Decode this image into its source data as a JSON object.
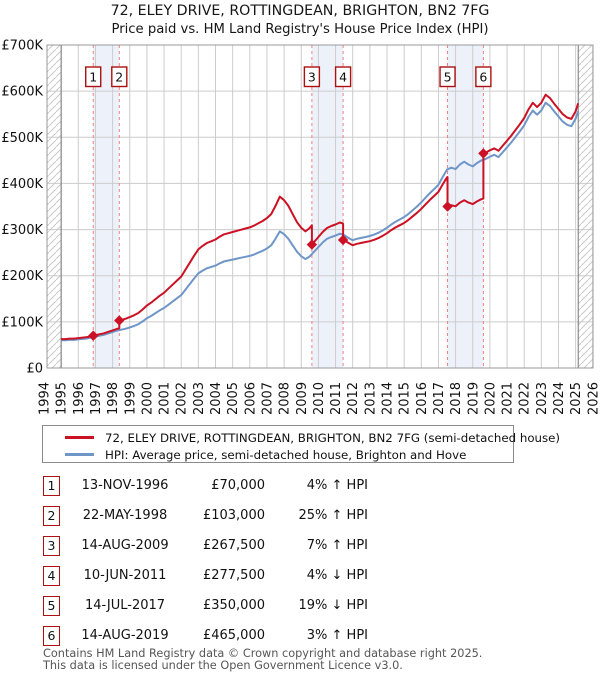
{
  "title": "72, ELEY DRIVE, ROTTINGDEAN, BRIGHTON, BN2 7FG",
  "subtitle": "Price paid vs. HM Land Registry's House Price Index (HPI)",
  "legend": {
    "property": "72, ELEY DRIVE, ROTTINGDEAN, BRIGHTON, BN2 7FG (semi-detached house)",
    "hpi": "HPI: Average price, semi-detached house, Brighton and Hove"
  },
  "colors": {
    "property_line": "#cc1124",
    "hpi_line": "#6f96c8",
    "sale_marker": "#cc1124",
    "sale_dashed_line": "#ef8080",
    "sale_band": "#edf2fa",
    "grid": "#cccccc",
    "plot_border": "#999999",
    "hatch": "#c9c9c9",
    "data_edge": "#777777",
    "number_box_border": "#aa1111"
  },
  "chart_data": {
    "type": "line",
    "title": "72, ELEY DRIVE, ROTTINGDEAN, BRIGHTON, BN2 7FG",
    "subtitle": "Price paid vs. HM Land Registry's House Price Index (HPI)",
    "x_axis": {
      "start": 1994,
      "end": 2026,
      "tick_step": 1,
      "label_rotation_deg": -90
    },
    "y_axis": {
      "min": 0,
      "max": 700000,
      "tick_step": 100000,
      "tick_labels": [
        "£0",
        "£100K",
        "£200K",
        "£300K",
        "£400K",
        "£500K",
        "£600K",
        "£700K"
      ],
      "units": "GBP"
    },
    "grid": true,
    "legend_position": "below",
    "no_data_hatch_before": 1995.0,
    "no_data_hatch_after": 2025.15,
    "hpi_series": {
      "name": "HPI: Average price, semi-detached house, Brighton and Hove",
      "units": "GBP thousands",
      "points": [
        [
          1995.0,
          60
        ],
        [
          1995.25,
          60
        ],
        [
          1995.5,
          61
        ],
        [
          1995.75,
          61
        ],
        [
          1996.0,
          62
        ],
        [
          1996.25,
          63
        ],
        [
          1996.5,
          64
        ],
        [
          1996.75,
          66
        ],
        [
          1997.0,
          68
        ],
        [
          1997.25,
          70
        ],
        [
          1997.5,
          72
        ],
        [
          1997.75,
          75
        ],
        [
          1998.0,
          78
        ],
        [
          1998.25,
          81
        ],
        [
          1998.5,
          83
        ],
        [
          1998.75,
          85
        ],
        [
          1999.0,
          88
        ],
        [
          1999.25,
          91
        ],
        [
          1999.5,
          95
        ],
        [
          1999.75,
          101
        ],
        [
          2000.0,
          108
        ],
        [
          2000.25,
          113
        ],
        [
          2000.5,
          119
        ],
        [
          2000.75,
          125
        ],
        [
          2001.0,
          130
        ],
        [
          2001.25,
          137
        ],
        [
          2001.5,
          144
        ],
        [
          2001.75,
          151
        ],
        [
          2002.0,
          158
        ],
        [
          2002.25,
          170
        ],
        [
          2002.5,
          182
        ],
        [
          2002.75,
          194
        ],
        [
          2003.0,
          205
        ],
        [
          2003.25,
          211
        ],
        [
          2003.5,
          216
        ],
        [
          2003.75,
          219
        ],
        [
          2004.0,
          222
        ],
        [
          2004.25,
          227
        ],
        [
          2004.5,
          231
        ],
        [
          2004.75,
          233
        ],
        [
          2005.0,
          235
        ],
        [
          2005.25,
          237
        ],
        [
          2005.5,
          239
        ],
        [
          2005.75,
          241
        ],
        [
          2006.0,
          243
        ],
        [
          2006.25,
          246
        ],
        [
          2006.5,
          250
        ],
        [
          2006.75,
          254
        ],
        [
          2007.0,
          259
        ],
        [
          2007.25,
          266
        ],
        [
          2007.5,
          280
        ],
        [
          2007.75,
          296
        ],
        [
          2008.0,
          290
        ],
        [
          2008.25,
          280
        ],
        [
          2008.5,
          266
        ],
        [
          2008.75,
          252
        ],
        [
          2009.0,
          242
        ],
        [
          2009.25,
          236
        ],
        [
          2009.5,
          242
        ],
        [
          2009.75,
          252
        ],
        [
          2010.0,
          262
        ],
        [
          2010.25,
          272
        ],
        [
          2010.5,
          280
        ],
        [
          2010.75,
          284
        ],
        [
          2011.0,
          287
        ],
        [
          2011.25,
          291
        ],
        [
          2011.5,
          288
        ],
        [
          2011.75,
          282
        ],
        [
          2012.0,
          277
        ],
        [
          2012.25,
          280
        ],
        [
          2012.5,
          282
        ],
        [
          2012.75,
          284
        ],
        [
          2013.0,
          286
        ],
        [
          2013.25,
          289
        ],
        [
          2013.5,
          293
        ],
        [
          2013.75,
          298
        ],
        [
          2014.0,
          304
        ],
        [
          2014.25,
          311
        ],
        [
          2014.5,
          317
        ],
        [
          2014.75,
          322
        ],
        [
          2015.0,
          327
        ],
        [
          2015.25,
          334
        ],
        [
          2015.5,
          342
        ],
        [
          2015.75,
          350
        ],
        [
          2016.0,
          359
        ],
        [
          2016.25,
          369
        ],
        [
          2016.5,
          379
        ],
        [
          2016.75,
          388
        ],
        [
          2017.0,
          397
        ],
        [
          2017.25,
          414
        ],
        [
          2017.5,
          430
        ],
        [
          2017.75,
          434
        ],
        [
          2018.0,
          431
        ],
        [
          2018.25,
          441
        ],
        [
          2018.5,
          447
        ],
        [
          2018.75,
          441
        ],
        [
          2019.0,
          437
        ],
        [
          2019.25,
          444
        ],
        [
          2019.5,
          450
        ],
        [
          2019.75,
          453
        ],
        [
          2020.0,
          458
        ],
        [
          2020.25,
          462
        ],
        [
          2020.5,
          457
        ],
        [
          2020.75,
          468
        ],
        [
          2021.0,
          478
        ],
        [
          2021.25,
          489
        ],
        [
          2021.5,
          501
        ],
        [
          2021.75,
          513
        ],
        [
          2022.0,
          526
        ],
        [
          2022.25,
          544
        ],
        [
          2022.5,
          558
        ],
        [
          2022.75,
          549
        ],
        [
          2023.0,
          558
        ],
        [
          2023.25,
          575
        ],
        [
          2023.5,
          568
        ],
        [
          2023.75,
          556
        ],
        [
          2024.0,
          545
        ],
        [
          2024.25,
          534
        ],
        [
          2024.5,
          527
        ],
        [
          2024.75,
          524
        ],
        [
          2025.0,
          540
        ],
        [
          2025.15,
          557
        ]
      ]
    },
    "property_series": {
      "name": "72, ELEY DRIVE, ROTTINGDEAN, BRIGHTON, BN2 7FG (semi-detached house)",
      "derivation": "HPI series scaled to pass through each sale price between consecutive sales",
      "segments_vs_hpi_pct": [
        4,
        25,
        7,
        -4,
        -19,
        3
      ]
    },
    "sales": [
      {
        "num": 1,
        "date": "13-NOV-1996",
        "year": 1996.87,
        "price_k": 70,
        "price_label": "£70,000",
        "vs_hpi": "4% ↑ HPI"
      },
      {
        "num": 2,
        "date": "22-MAY-1998",
        "year": 1998.39,
        "price_k": 103,
        "price_label": "£103,000",
        "vs_hpi": "25% ↑ HPI"
      },
      {
        "num": 3,
        "date": "14-AUG-2009",
        "year": 2009.62,
        "price_k": 267.5,
        "price_label": "£267,500",
        "vs_hpi": "7% ↑ HPI"
      },
      {
        "num": 4,
        "date": "10-JUN-2011",
        "year": 2011.44,
        "price_k": 277.5,
        "price_label": "£277,500",
        "vs_hpi": "4% ↓ HPI"
      },
      {
        "num": 5,
        "date": "14-JUL-2017",
        "year": 2017.53,
        "price_k": 350,
        "price_label": "£350,000",
        "vs_hpi": "19% ↓ HPI"
      },
      {
        "num": 6,
        "date": "14-AUG-2019",
        "year": 2019.62,
        "price_k": 465,
        "price_label": "£465,000",
        "vs_hpi": "3% ↑ HPI"
      }
    ],
    "sale_band_pairs": [
      [
        0,
        1
      ],
      [
        2,
        3
      ],
      [
        4,
        5
      ]
    ]
  },
  "footer": {
    "line1": "Contains HM Land Registry data © Crown copyright and database right 2025.",
    "line2": "This data is licensed under the Open Government Licence v3.0."
  }
}
